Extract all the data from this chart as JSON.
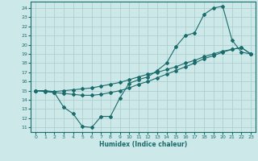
{
  "xlabel": "Humidex (Indice chaleur)",
  "bg_color": "#cce8e8",
  "line_color": "#1a6b6b",
  "grid_color": "#aacccc",
  "xlim": [
    -0.5,
    23.5
  ],
  "ylim": [
    10.5,
    24.7
  ],
  "yticks": [
    11,
    12,
    13,
    14,
    15,
    16,
    17,
    18,
    19,
    20,
    21,
    22,
    23,
    24
  ],
  "xticks": [
    0,
    1,
    2,
    3,
    4,
    5,
    6,
    7,
    8,
    9,
    10,
    11,
    12,
    13,
    14,
    15,
    16,
    17,
    18,
    19,
    20,
    21,
    22,
    23
  ],
  "line1_x": [
    0,
    1,
    2,
    3,
    4,
    5,
    6,
    7,
    8,
    9,
    10,
    11,
    12,
    13,
    14,
    15,
    16,
    17,
    18,
    19,
    20,
    21,
    22,
    23
  ],
  "line1_y": [
    15.0,
    15.0,
    14.8,
    13.2,
    12.5,
    11.1,
    11.0,
    12.2,
    12.2,
    14.2,
    15.8,
    16.2,
    16.5,
    17.2,
    18.0,
    19.8,
    21.0,
    21.3,
    23.3,
    24.0,
    24.2,
    20.5,
    19.2,
    19.0
  ],
  "line2_x": [
    0,
    1,
    2,
    3,
    4,
    5,
    6,
    7,
    8,
    9,
    10,
    11,
    12,
    13,
    14,
    15,
    16,
    17,
    18,
    19,
    20,
    21,
    22,
    23
  ],
  "line2_y": [
    15.0,
    14.9,
    14.8,
    14.7,
    14.6,
    14.5,
    14.5,
    14.6,
    14.8,
    15.0,
    15.3,
    15.7,
    16.0,
    16.4,
    16.8,
    17.2,
    17.6,
    18.0,
    18.5,
    18.8,
    19.2,
    19.5,
    19.7,
    19.0
  ],
  "line3_x": [
    0,
    1,
    2,
    3,
    4,
    5,
    6,
    7,
    8,
    9,
    10,
    11,
    12,
    13,
    14,
    15,
    16,
    17,
    18,
    19,
    20,
    21,
    22,
    23
  ],
  "line3_y": [
    15.0,
    15.0,
    14.9,
    15.0,
    15.1,
    15.2,
    15.3,
    15.5,
    15.7,
    15.9,
    16.2,
    16.5,
    16.8,
    17.0,
    17.3,
    17.6,
    18.0,
    18.3,
    18.7,
    19.0,
    19.3,
    19.5,
    19.7,
    19.0
  ]
}
